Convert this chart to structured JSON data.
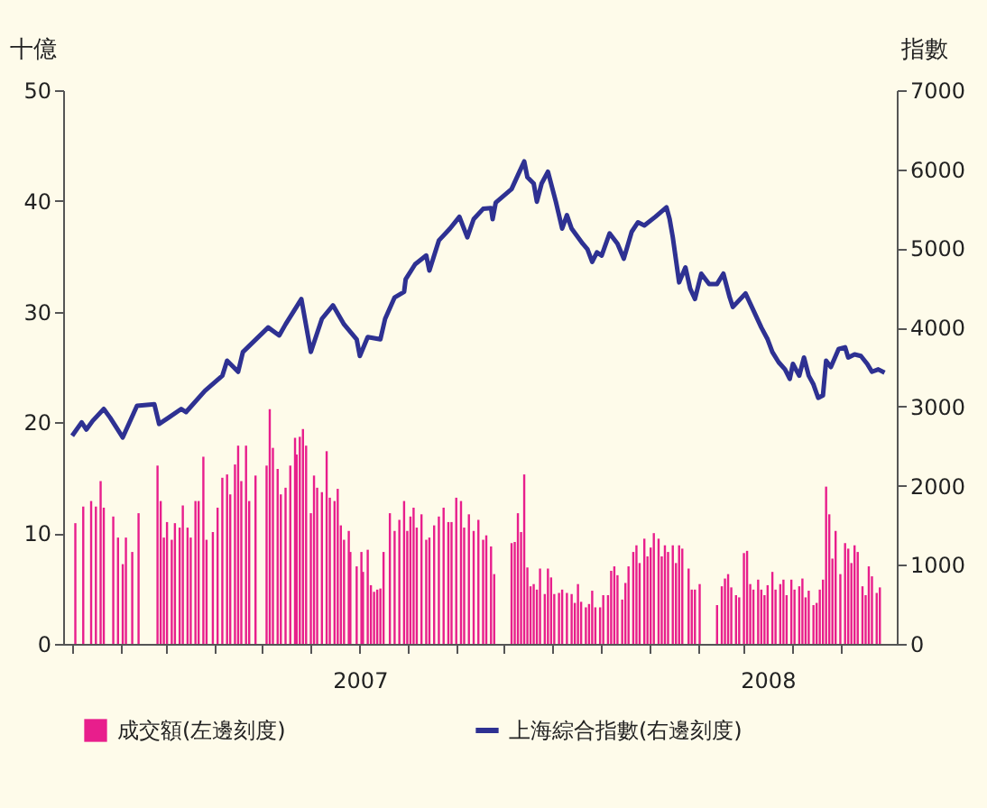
{
  "chart_data": {
    "type": "bar",
    "ylabel": "十億",
    "y2label": "指數",
    "xlim": [
      "2007-01-01",
      "2008-05-31"
    ],
    "xticks": [
      {
        "value": "2007-01-01",
        "label": null
      },
      {
        "value": "2007-02-01",
        "label": null
      },
      {
        "value": "2007-03-01",
        "label": null
      },
      {
        "value": "2007-04-01",
        "label": null
      },
      {
        "value": "2007-05-01",
        "label": null
      },
      {
        "value": "2007-06-01",
        "label": null
      },
      {
        "value": "2007-07-01",
        "label": null
      },
      {
        "value": "2007-08-01",
        "label": null
      },
      {
        "value": "2007-09-01",
        "label": null
      },
      {
        "value": "2007-10-01",
        "label": null
      },
      {
        "value": "2007-11-01",
        "label": null
      },
      {
        "value": "2007-12-01",
        "label": null
      },
      {
        "value": "2008-01-01",
        "label": null
      },
      {
        "value": "2008-02-01",
        "label": null
      },
      {
        "value": "2008-03-01",
        "label": null
      },
      {
        "value": "2008-04-01",
        "label": null
      },
      {
        "value": "2008-05-01",
        "label": null
      },
      {
        "value": "2007-07-02",
        "label": "2007"
      },
      {
        "value": "2008-03-16",
        "label": "2008"
      }
    ],
    "ylim": [
      0,
      50
    ],
    "yticks": [
      0,
      10,
      20,
      30,
      40,
      50
    ],
    "y2lim": [
      0,
      7000
    ],
    "y2ticks": [
      0,
      1000,
      2000,
      3000,
      4000,
      5000,
      6000,
      7000
    ],
    "legend": "bottom",
    "series": [
      {
        "name": "成交額(左邊刻度)",
        "color": "#e81e8c",
        "x": [
          "2007-01-03",
          "2007-01-08",
          "2007-01-13",
          "2007-01-16",
          "2007-01-19",
          "2007-01-21",
          "2007-01-27",
          "2007-01-30",
          "2007-02-02",
          "2007-02-04",
          "2007-02-08",
          "2007-02-12",
          "2007-02-24",
          "2007-02-26",
          "2007-02-28",
          "2007-03-02",
          "2007-03-05",
          "2007-03-07",
          "2007-03-10",
          "2007-03-12",
          "2007-03-15",
          "2007-03-17",
          "2007-03-20",
          "2007-03-22",
          "2007-03-25",
          "2007-03-27",
          "2007-03-31",
          "2007-04-03",
          "2007-04-06",
          "2007-04-09",
          "2007-04-11",
          "2007-04-14",
          "2007-04-16",
          "2007-04-18",
          "2007-04-21",
          "2007-04-23",
          "2007-04-27",
          "2007-05-04",
          "2007-05-06",
          "2007-05-08",
          "2007-05-11",
          "2007-05-13",
          "2007-05-16",
          "2007-05-19",
          "2007-05-22",
          "2007-05-23",
          "2007-05-25",
          "2007-05-27",
          "2007-05-29",
          "2007-06-01",
          "2007-06-03",
          "2007-06-05",
          "2007-06-08",
          "2007-06-11",
          "2007-06-13",
          "2007-06-16",
          "2007-06-18",
          "2007-06-20",
          "2007-06-22",
          "2007-06-25",
          "2007-06-26",
          "2007-06-30",
          "2007-07-03",
          "2007-07-04",
          "2007-07-07",
          "2007-07-09",
          "2007-07-11",
          "2007-07-13",
          "2007-07-15",
          "2007-07-17",
          "2007-07-21",
          "2007-07-24",
          "2007-07-27",
          "2007-07-30",
          "2007-08-01",
          "2007-08-03",
          "2007-08-05",
          "2007-08-07",
          "2007-08-10",
          "2007-08-13",
          "2007-08-15",
          "2007-08-18",
          "2007-08-21",
          "2007-08-24",
          "2007-08-27",
          "2007-08-29",
          "2007-09-01",
          "2007-09-04",
          "2007-09-06",
          "2007-09-09",
          "2007-09-12",
          "2007-09-15",
          "2007-09-18",
          "2007-09-20",
          "2007-09-23",
          "2007-09-25",
          "2007-10-06",
          "2007-10-08",
          "2007-10-10",
          "2007-10-12",
          "2007-10-14",
          "2007-10-16",
          "2007-10-18",
          "2007-10-20",
          "2007-10-22",
          "2007-10-24",
          "2007-10-27",
          "2007-10-29",
          "2007-10-31",
          "2007-11-02",
          "2007-11-05",
          "2007-11-07",
          "2007-11-10",
          "2007-11-13",
          "2007-11-15",
          "2007-11-17",
          "2007-11-19",
          "2007-11-22",
          "2007-11-24",
          "2007-11-26",
          "2007-11-28",
          "2007-12-01",
          "2007-12-03",
          "2007-12-06",
          "2007-12-08",
          "2007-12-10",
          "2007-12-12",
          "2007-12-15",
          "2007-12-17",
          "2007-12-19",
          "2007-12-22",
          "2007-12-24",
          "2007-12-26",
          "2007-12-29",
          "2007-12-31",
          "2008-01-02",
          "2008-01-04",
          "2008-01-07",
          "2008-01-09",
          "2008-01-11",
          "2008-01-13",
          "2008-01-16",
          "2008-01-18",
          "2008-01-20",
          "2008-01-22",
          "2008-01-26",
          "2008-01-28",
          "2008-01-30",
          "2008-02-02",
          "2008-02-13",
          "2008-02-16",
          "2008-02-18",
          "2008-02-20",
          "2008-02-22",
          "2008-02-25",
          "2008-02-27",
          "2008-03-01",
          "2008-03-03",
          "2008-03-05",
          "2008-03-07",
          "2008-03-10",
          "2008-03-12",
          "2008-03-14",
          "2008-03-16",
          "2008-03-19",
          "2008-03-21",
          "2008-03-24",
          "2008-03-26",
          "2008-03-28",
          "2008-03-31",
          "2008-04-02",
          "2008-04-05",
          "2008-04-07",
          "2008-04-09",
          "2008-04-11",
          "2008-04-14",
          "2008-04-16",
          "2008-04-18",
          "2008-04-20",
          "2008-04-22",
          "2008-04-24",
          "2008-04-26",
          "2008-04-28",
          "2008-05-01",
          "2008-05-04",
          "2008-05-06",
          "2008-05-08",
          "2008-05-10",
          "2008-05-12",
          "2008-05-15",
          "2008-05-17",
          "2008-05-19",
          "2008-05-21",
          "2008-05-24",
          "2008-05-26"
        ],
        "values": [
          10.9,
          12.4,
          12.9,
          12.4,
          14.7,
          12.3,
          11.5,
          9.6,
          7.2,
          9.6,
          8.3,
          11.8,
          16.1,
          12.9,
          9.6,
          11.0,
          9.4,
          10.9,
          10.5,
          12.5,
          10.5,
          9.6,
          12.9,
          12.9,
          16.9,
          9.4,
          10.1,
          12.3,
          15.0,
          15.3,
          13.5,
          16.2,
          17.9,
          14.7,
          17.9,
          12.9,
          15.2,
          16.1,
          21.2,
          17.7,
          15.8,
          13.5,
          14.1,
          16.1,
          18.6,
          17.1,
          18.7,
          19.4,
          17.9,
          11.8,
          15.2,
          14.1,
          13.7,
          17.4,
          13.2,
          12.9,
          14.0,
          10.7,
          9.4,
          10.2,
          8.3,
          7.0,
          8.3,
          6.5,
          8.5,
          5.3,
          4.7,
          4.9,
          5.0,
          8.3,
          11.8,
          10.2,
          11.2,
          12.9,
          10.2,
          11.5,
          12.3,
          10.5,
          11.7,
          9.4,
          9.6,
          10.7,
          11.5,
          12.3,
          11.0,
          11.0,
          13.2,
          12.9,
          10.5,
          11.7,
          10.2,
          11.2,
          9.4,
          9.8,
          8.8,
          6.3,
          9.1,
          9.2,
          11.8,
          10.1,
          15.3,
          6.9,
          5.2,
          5.4,
          4.9,
          6.8,
          4.5,
          6.8,
          6.0,
          4.5,
          4.6,
          4.9,
          4.6,
          4.5,
          3.7,
          5.4,
          3.8,
          3.3,
          3.6,
          4.8,
          3.3,
          3.3,
          4.4,
          4.4,
          6.6,
          7.0,
          6.2,
          4.0,
          5.5,
          7.0,
          8.3,
          8.9,
          7.3,
          9.5,
          7.9,
          8.7,
          10.0,
          9.5,
          7.9,
          8.9,
          8.3,
          8.9,
          7.3,
          8.9,
          8.6,
          6.8,
          4.9,
          4.9,
          5.4,
          3.5,
          5.2,
          5.9,
          6.3,
          5.1,
          4.4,
          4.2,
          8.2,
          8.4,
          5.4,
          4.9,
          5.8,
          4.9,
          4.4,
          5.3,
          6.5,
          4.9,
          5.4,
          5.8,
          4.4,
          5.8,
          4.9,
          5.2,
          5.9,
          4.2,
          4.8,
          3.5,
          3.7,
          4.9,
          5.8,
          14.2,
          11.7,
          7.7,
          10.2,
          6.3,
          9.1,
          8.6,
          7.3,
          8.9,
          8.3,
          5.2,
          4.4,
          7.0,
          6.1,
          4.6,
          5.1
        ]
      },
      {
        "name": "上海綜合指數(右邊刻度)",
        "type": "line",
        "axis": "y2",
        "color": "#2e3192",
        "x": [
          "2007-01-01",
          "2007-01-07",
          "2007-01-10",
          "2007-01-14",
          "2007-01-21",
          "2007-01-25",
          "2007-02-02",
          "2007-02-11",
          "2007-02-22",
          "2007-02-25",
          "2007-03-03",
          "2007-03-11",
          "2007-03-14",
          "2007-03-26",
          "2007-04-06",
          "2007-04-09",
          "2007-04-16",
          "2007-04-19",
          "2007-05-05",
          "2007-05-12",
          "2007-05-16",
          "2007-05-26",
          "2007-06-01",
          "2007-06-08",
          "2007-06-15",
          "2007-06-22",
          "2007-06-30",
          "2007-07-02",
          "2007-07-07",
          "2007-07-15",
          "2007-07-18",
          "2007-07-24",
          "2007-07-30",
          "2007-07-31",
          "2007-08-06",
          "2007-08-13",
          "2007-08-15",
          "2007-08-21",
          "2007-08-28",
          "2007-09-03",
          "2007-09-08",
          "2007-09-12",
          "2007-09-18",
          "2007-09-23",
          "2007-09-24",
          "2007-09-26",
          "2007-10-06",
          "2007-10-11",
          "2007-10-14",
          "2007-10-16",
          "2007-10-20",
          "2007-10-22",
          "2007-10-25",
          "2007-10-29",
          "2007-11-03",
          "2007-11-07",
          "2007-11-10",
          "2007-11-13",
          "2007-11-20",
          "2007-11-23",
          "2007-11-26",
          "2007-11-29",
          "2007-12-02",
          "2007-12-07",
          "2007-12-12",
          "2007-12-16",
          "2007-12-21",
          "2007-12-25",
          "2007-12-29",
          "2008-01-05",
          "2008-01-12",
          "2008-01-14",
          "2008-01-16",
          "2008-01-20",
          "2008-01-24",
          "2008-01-27",
          "2008-01-30",
          "2008-02-03",
          "2008-02-08",
          "2008-02-13",
          "2008-02-17",
          "2008-02-21",
          "2008-02-23",
          "2008-03-02",
          "2008-03-06",
          "2008-03-12",
          "2008-03-16",
          "2008-03-19",
          "2008-03-23",
          "2008-03-27",
          "2008-03-30",
          "2008-04-01",
          "2008-04-05",
          "2008-04-08",
          "2008-04-11",
          "2008-04-14",
          "2008-04-17",
          "2008-04-20",
          "2008-04-22",
          "2008-04-25",
          "2008-04-30",
          "2008-05-04",
          "2008-05-06",
          "2008-05-10",
          "2008-05-14",
          "2008-05-18",
          "2008-05-21",
          "2008-05-25",
          "2008-05-29"
        ],
        "values": [
          2630,
          2800,
          2710,
          2820,
          2970,
          2860,
          2610,
          3010,
          3030,
          2780,
          2860,
          2970,
          2930,
          3200,
          3390,
          3580,
          3440,
          3690,
          4000,
          3900,
          4040,
          4360,
          3690,
          4110,
          4280,
          4040,
          3850,
          3640,
          3880,
          3850,
          4110,
          4380,
          4450,
          4610,
          4800,
          4910,
          4720,
          5100,
          5250,
          5400,
          5140,
          5370,
          5500,
          5510,
          5370,
          5580,
          5750,
          5970,
          6100,
          5900,
          5820,
          5590,
          5820,
          5970,
          5590,
          5250,
          5420,
          5250,
          5060,
          4990,
          4830,
          4950,
          4910,
          5190,
          5060,
          4870,
          5210,
          5330,
          5290,
          5400,
          5520,
          5370,
          5140,
          4570,
          4760,
          4490,
          4360,
          4680,
          4550,
          4550,
          4680,
          4380,
          4260,
          4430,
          4260,
          4000,
          3850,
          3690,
          3560,
          3470,
          3350,
          3540,
          3390,
          3620,
          3390,
          3280,
          3110,
          3140,
          3580,
          3500,
          3730,
          3750,
          3620,
          3660,
          3640,
          3540,
          3440,
          3470,
          3430
        ]
      }
    ]
  }
}
